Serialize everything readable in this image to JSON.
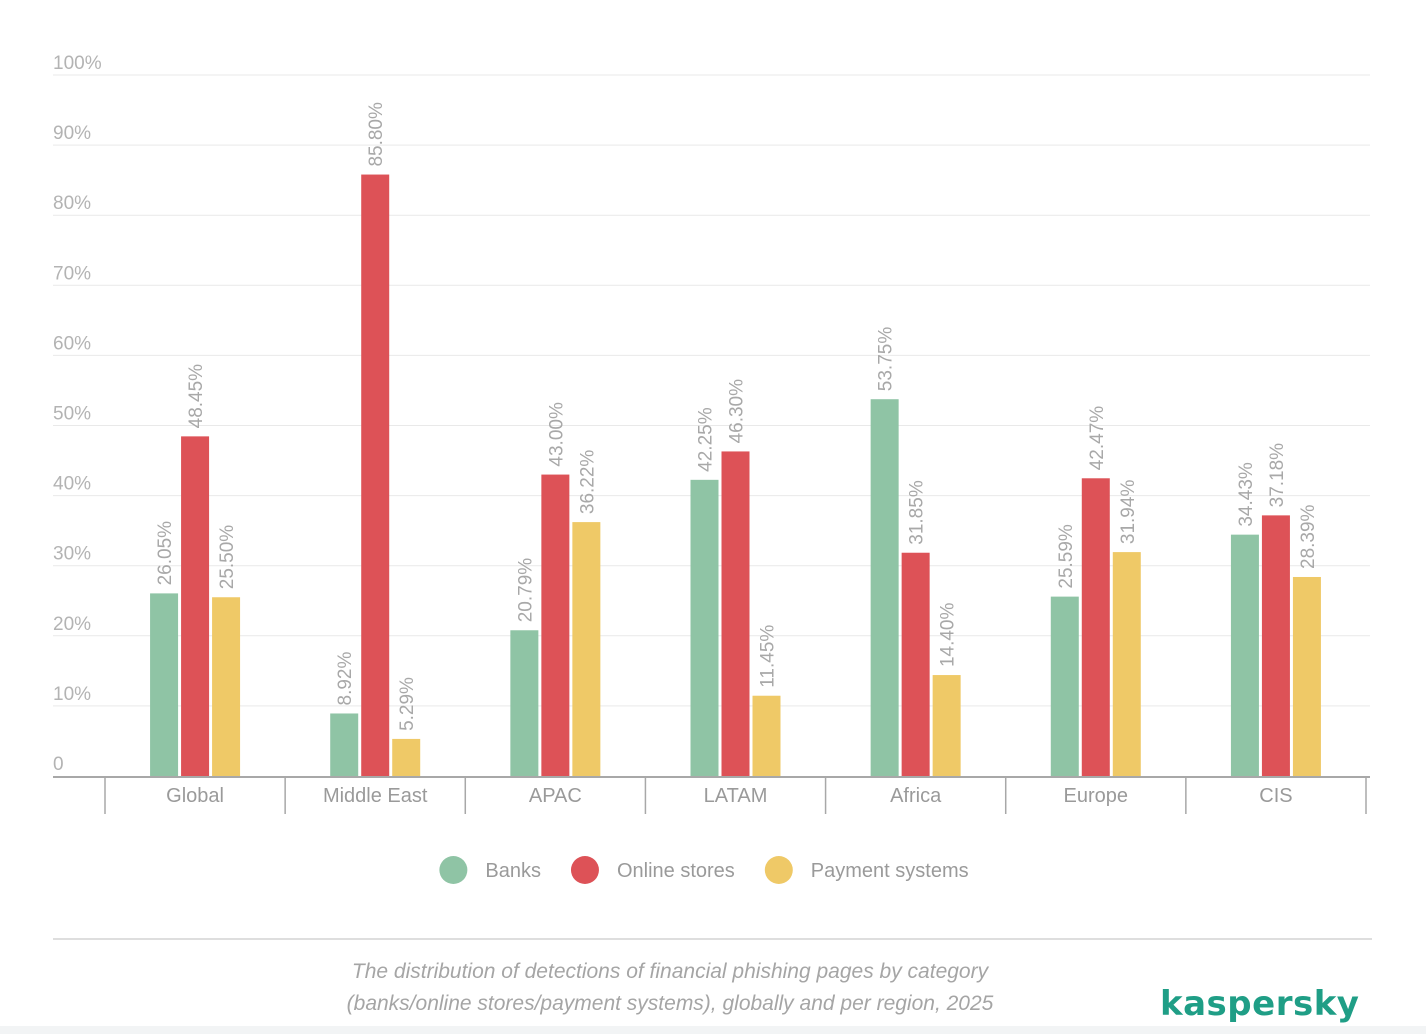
{
  "chart_data": {
    "type": "bar",
    "categories": [
      "Global",
      "Middle East",
      "APAC",
      "LATAM",
      "Africa",
      "Europe",
      "CIS"
    ],
    "series": [
      {
        "name": "Banks",
        "color": "#8fc4a5",
        "values": [
          26.05,
          8.92,
          20.79,
          42.25,
          53.75,
          25.59,
          34.43
        ],
        "labels": [
          "26.05%",
          "8.92%",
          "20.79%",
          "42.25%",
          "53.75%",
          "25.59%",
          "34.43%"
        ]
      },
      {
        "name": "Online stores",
        "color": "#dd5257",
        "values": [
          48.45,
          85.8,
          43.0,
          46.3,
          31.85,
          42.47,
          37.18
        ],
        "labels": [
          "48.45%",
          "85.80%",
          "43.00%",
          "46.30%",
          "31.85%",
          "42.47%",
          "37.18%"
        ]
      },
      {
        "name": "Payment systems",
        "color": "#efc967",
        "values": [
          25.5,
          5.29,
          36.22,
          11.45,
          14.4,
          31.94,
          28.39
        ],
        "labels": [
          "25.50%",
          "5.29%",
          "36.22%",
          "11.45%",
          "14.40%",
          "31.94%",
          "28.39%"
        ]
      }
    ],
    "yticks": [
      {
        "value": 0,
        "label": "0"
      },
      {
        "value": 10,
        "label": "10%"
      },
      {
        "value": 20,
        "label": "20%"
      },
      {
        "value": 30,
        "label": "30%"
      },
      {
        "value": 40,
        "label": "40%"
      },
      {
        "value": 50,
        "label": "50%"
      },
      {
        "value": 60,
        "label": "60%"
      },
      {
        "value": 70,
        "label": "70%"
      },
      {
        "value": 80,
        "label": "80%"
      },
      {
        "value": 90,
        "label": "90%"
      },
      {
        "value": 100,
        "label": "100%"
      }
    ],
    "ylim": [
      0,
      100
    ],
    "grid": true,
    "legend_position": "bottom-center",
    "title": "",
    "xlabel": "",
    "ylabel": ""
  },
  "caption": {
    "line1": "The distribution of detections of financial phishing pages by category",
    "line2": "(banks/online stores/payment systems), globally and per region, 2025"
  },
  "brand": {
    "logo_text": "kaspersky",
    "color": "#1f9e86"
  }
}
